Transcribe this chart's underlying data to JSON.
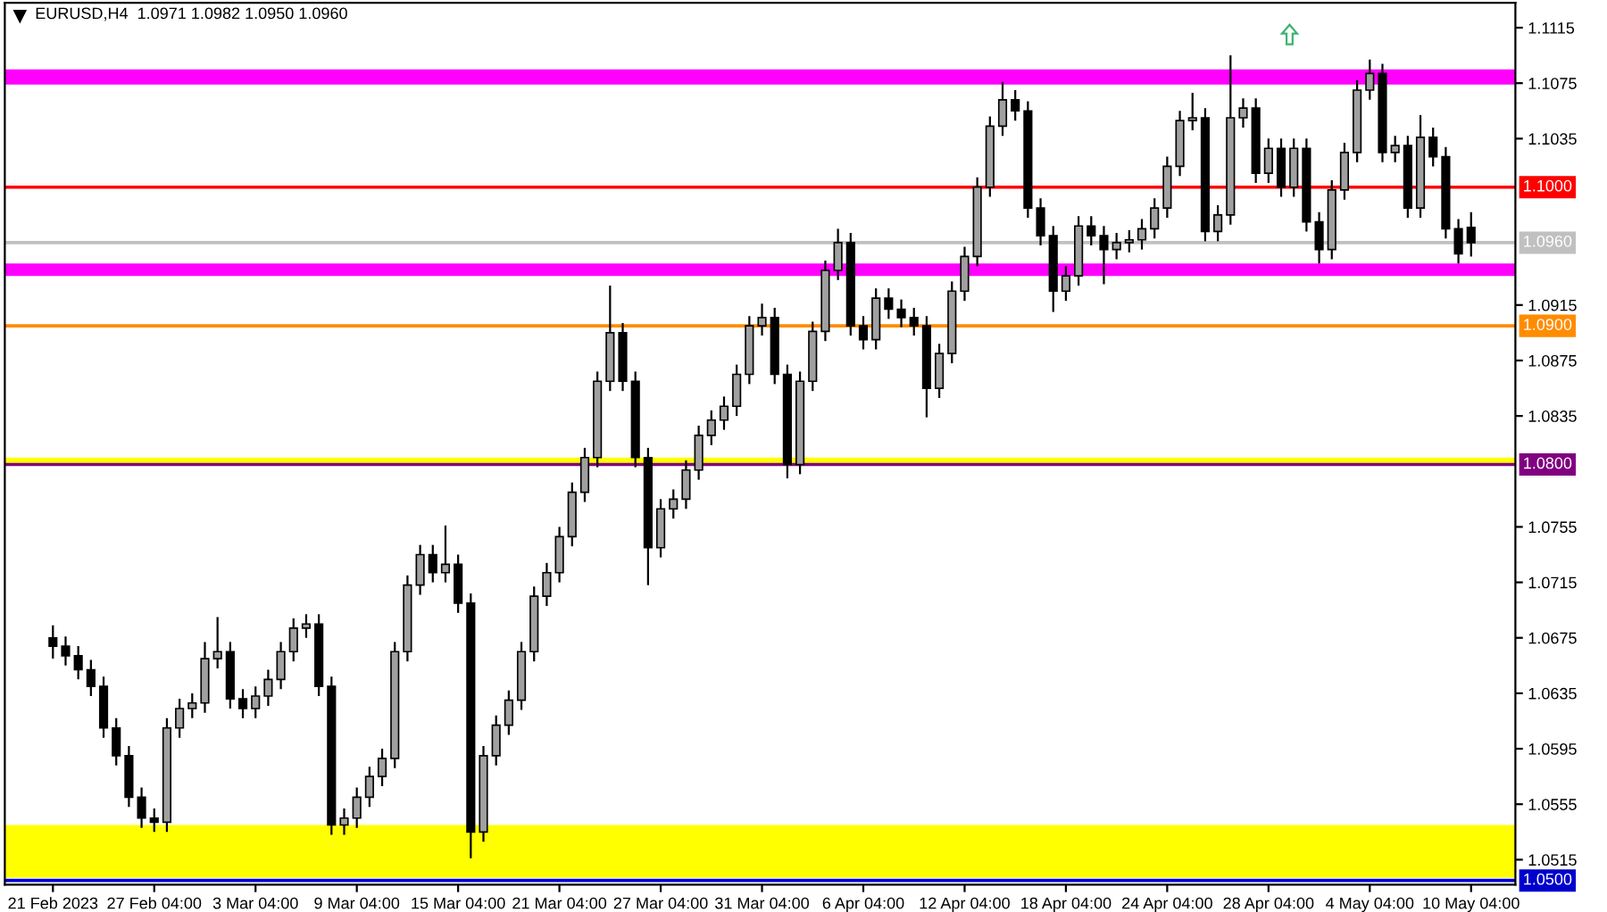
{
  "chart_data": {
    "type": "candlestick",
    "title": "EURUSD,H4  1.0971 1.0982 1.0950 1.0960",
    "categories": [
      "21 Feb 2023",
      null,
      null,
      null,
      null,
      null,
      null,
      null,
      "27 Feb 04:00",
      null,
      null,
      null,
      null,
      null,
      null,
      null,
      "3 Mar 04:00",
      null,
      null,
      null,
      null,
      null,
      null,
      null,
      "9 Mar 04:00",
      null,
      null,
      null,
      null,
      null,
      null,
      null,
      "15 Mar 04:00",
      null,
      null,
      null,
      null,
      null,
      null,
      null,
      "21 Mar 04:00",
      null,
      null,
      null,
      null,
      null,
      null,
      null,
      "27 Mar 04:00",
      null,
      null,
      null,
      null,
      null,
      null,
      null,
      "31 Mar 04:00",
      null,
      null,
      null,
      null,
      null,
      null,
      null,
      "6 Apr 04:00",
      null,
      null,
      null,
      null,
      null,
      null,
      null,
      "12 Apr 04:00",
      null,
      null,
      null,
      null,
      null,
      null,
      null,
      "18 Apr 04:00",
      null,
      null,
      null,
      null,
      null,
      null,
      null,
      "24 Apr 04:00",
      null,
      null,
      null,
      null,
      null,
      null,
      null,
      "28 Apr 04:00",
      null,
      null,
      null,
      null,
      null,
      null,
      null,
      "4 May 04:00",
      null,
      null,
      null,
      null,
      null,
      null,
      null,
      "10 May 04:00"
    ],
    "ohlc": [
      [
        1.0675,
        1.0684,
        1.066,
        1.0669
      ],
      [
        1.0669,
        1.0676,
        1.0655,
        1.0662
      ],
      [
        1.0662,
        1.0669,
        1.0645,
        1.0652
      ],
      [
        1.0652,
        1.0659,
        1.0633,
        1.064
      ],
      [
        1.064,
        1.0647,
        1.0603,
        1.061
      ],
      [
        1.061,
        1.0617,
        1.0583,
        1.059
      ],
      [
        1.059,
        1.0597,
        1.0553,
        1.056
      ],
      [
        1.056,
        1.0567,
        1.0538,
        1.0545
      ],
      [
        1.0545,
        1.0552,
        1.0535,
        1.0542
      ],
      [
        1.0542,
        1.0617,
        1.0535,
        1.061
      ],
      [
        1.061,
        1.0631,
        1.0603,
        1.0624
      ],
      [
        1.0624,
        1.0635,
        1.0617,
        1.0628
      ],
      [
        1.0628,
        1.0672,
        1.0621,
        1.066
      ],
      [
        1.066,
        1.069,
        1.0653,
        1.0665
      ],
      [
        1.0665,
        1.0672,
        1.0624,
        1.0631
      ],
      [
        1.0631,
        1.0638,
        1.0617,
        1.0624
      ],
      [
        1.0624,
        1.064,
        1.0617,
        1.0633
      ],
      [
        1.0633,
        1.0652,
        1.0626,
        1.0645
      ],
      [
        1.0645,
        1.0672,
        1.0638,
        1.0665
      ],
      [
        1.0665,
        1.0689,
        1.0658,
        1.0682
      ],
      [
        1.0682,
        1.0692,
        1.0675,
        1.0685
      ],
      [
        1.0685,
        1.0692,
        1.0633,
        1.064
      ],
      [
        1.064,
        1.0647,
        1.0533,
        1.054
      ],
      [
        1.054,
        1.0552,
        1.0533,
        1.0545
      ],
      [
        1.0545,
        1.0567,
        1.0538,
        1.056
      ],
      [
        1.056,
        1.0582,
        1.0553,
        1.0575
      ],
      [
        1.0575,
        1.0595,
        1.0568,
        1.0588
      ],
      [
        1.0588,
        1.0672,
        1.0581,
        1.0665
      ],
      [
        1.0665,
        1.072,
        1.0658,
        1.0713
      ],
      [
        1.0713,
        1.0742,
        1.0706,
        1.0735
      ],
      [
        1.0735,
        1.0742,
        1.0715,
        1.0722
      ],
      [
        1.0722,
        1.0756,
        1.0715,
        1.0728
      ],
      [
        1.0728,
        1.0735,
        1.0693,
        1.07
      ],
      [
        1.07,
        1.0707,
        1.0516,
        1.0535
      ],
      [
        1.0535,
        1.0597,
        1.0528,
        1.059
      ],
      [
        1.059,
        1.0619,
        1.0583,
        1.0612
      ],
      [
        1.0612,
        1.0637,
        1.0605,
        1.063
      ],
      [
        1.063,
        1.0672,
        1.0623,
        1.0665
      ],
      [
        1.0665,
        1.0712,
        1.0658,
        1.0705
      ],
      [
        1.0705,
        1.0729,
        1.0698,
        1.0722
      ],
      [
        1.0722,
        1.0755,
        1.0715,
        1.0748
      ],
      [
        1.0748,
        1.0787,
        1.0741,
        1.078
      ],
      [
        1.078,
        1.0812,
        1.0773,
        1.0805
      ],
      [
        1.0805,
        1.0867,
        1.0798,
        1.086
      ],
      [
        1.086,
        1.0929,
        1.0853,
        1.0895
      ],
      [
        1.0895,
        1.0902,
        1.0853,
        1.086
      ],
      [
        1.086,
        1.0867,
        1.0798,
        1.0805
      ],
      [
        1.0805,
        1.0812,
        1.0713,
        1.074
      ],
      [
        1.074,
        1.0775,
        1.0733,
        1.0768
      ],
      [
        1.0768,
        1.0782,
        1.0761,
        1.0775
      ],
      [
        1.0775,
        1.0803,
        1.0768,
        1.0796
      ],
      [
        1.0796,
        1.0828,
        1.0789,
        1.0821
      ],
      [
        1.0821,
        1.0839,
        1.0814,
        1.0832
      ],
      [
        1.0832,
        1.0849,
        1.0825,
        1.0842
      ],
      [
        1.0842,
        1.0872,
        1.0835,
        1.0865
      ],
      [
        1.0865,
        1.0907,
        1.0858,
        1.09
      ],
      [
        1.09,
        1.0916,
        1.0893,
        1.0906
      ],
      [
        1.0906,
        1.0913,
        1.0858,
        1.0865
      ],
      [
        1.0865,
        1.0872,
        1.079,
        1.08
      ],
      [
        1.08,
        1.0867,
        1.0793,
        1.086
      ],
      [
        1.086,
        1.0903,
        1.0853,
        1.0896
      ],
      [
        1.0896,
        1.0947,
        1.0889,
        1.094
      ],
      [
        1.094,
        1.097,
        1.0933,
        1.096
      ],
      [
        1.096,
        1.0967,
        1.0893,
        1.09
      ],
      [
        1.09,
        1.0907,
        1.0883,
        1.089
      ],
      [
        1.089,
        1.0927,
        1.0883,
        1.092
      ],
      [
        1.092,
        1.0927,
        1.0905,
        1.0912
      ],
      [
        1.0912,
        1.0919,
        1.0899,
        1.0906
      ],
      [
        1.0906,
        1.0913,
        1.0893,
        1.09
      ],
      [
        1.09,
        1.0907,
        1.0834,
        1.0855
      ],
      [
        1.0855,
        1.0887,
        1.0848,
        1.088
      ],
      [
        1.088,
        1.0932,
        1.0873,
        1.0925
      ],
      [
        1.0925,
        1.0957,
        1.0918,
        1.095
      ],
      [
        1.095,
        1.1007,
        1.0943,
        1.1
      ],
      [
        1.1,
        1.1051,
        1.0993,
        1.1044
      ],
      [
        1.1044,
        1.1076,
        1.1037,
        1.1063
      ],
      [
        1.1063,
        1.107,
        1.1048,
        1.1055
      ],
      [
        1.1055,
        1.1062,
        1.0978,
        1.0985
      ],
      [
        1.0985,
        1.0992,
        1.0958,
        1.0965
      ],
      [
        1.0965,
        1.0972,
        1.091,
        1.0925
      ],
      [
        1.0925,
        1.0943,
        1.0918,
        1.0936
      ],
      [
        1.0936,
        1.0979,
        1.0929,
        1.0972
      ],
      [
        1.0972,
        1.0979,
        1.0958,
        1.0965
      ],
      [
        1.0965,
        1.0972,
        1.093,
        1.0955
      ],
      [
        1.0955,
        1.0967,
        1.0948,
        1.096
      ],
      [
        1.096,
        1.0969,
        1.0953,
        1.0962
      ],
      [
        1.0962,
        1.0977,
        1.0955,
        1.097
      ],
      [
        1.097,
        1.0992,
        1.0963,
        1.0985
      ],
      [
        1.0985,
        1.1022,
        1.0978,
        1.1015
      ],
      [
        1.1015,
        1.1055,
        1.1008,
        1.1048
      ],
      [
        1.1048,
        1.1068,
        1.1041,
        1.105
      ],
      [
        1.105,
        1.1057,
        1.0961,
        1.0968
      ],
      [
        1.0968,
        1.0987,
        1.0961,
        1.098
      ],
      [
        1.098,
        1.1095,
        1.0973,
        1.105
      ],
      [
        1.105,
        1.1064,
        1.1043,
        1.1057
      ],
      [
        1.1057,
        1.1064,
        1.1003,
        1.101
      ],
      [
        1.101,
        1.1035,
        1.1003,
        1.1028
      ],
      [
        1.1028,
        1.1035,
        1.0993,
        1.1
      ],
      [
        1.1,
        1.1035,
        1.0993,
        1.1028
      ],
      [
        1.1028,
        1.1035,
        1.0968,
        1.0975
      ],
      [
        1.0975,
        1.0982,
        1.0945,
        1.0955
      ],
      [
        1.0955,
        1.1005,
        1.0948,
        1.0998
      ],
      [
        1.0998,
        1.1032,
        1.0991,
        1.1025
      ],
      [
        1.1025,
        1.1077,
        1.1018,
        1.107
      ],
      [
        1.107,
        1.1092,
        1.1063,
        1.1082
      ],
      [
        1.1082,
        1.1089,
        1.1018,
        1.1025
      ],
      [
        1.1025,
        1.1037,
        1.1018,
        1.103
      ],
      [
        1.103,
        1.1037,
        1.0978,
        1.0985
      ],
      [
        1.0985,
        1.1052,
        1.0978,
        1.1036
      ],
      [
        1.1036,
        1.1043,
        1.1015,
        1.1022
      ],
      [
        1.1022,
        1.1029,
        1.0963,
        1.097
      ],
      [
        1.097,
        1.0977,
        1.0945,
        1.0952
      ],
      [
        1.0971,
        1.0982,
        1.095,
        1.096
      ]
    ],
    "ylim": [
      1.0497,
      1.1133
    ],
    "yticks": [
      1.1115,
      1.1075,
      1.1035,
      1.0915,
      1.0875,
      1.0835,
      1.0755,
      1.0715,
      1.0675,
      1.0635,
      1.0595,
      1.0555,
      1.0515
    ],
    "ref_lines": [
      {
        "axis": "y",
        "value": 1.1,
        "label": "1.1000",
        "color": "#ff0000"
      },
      {
        "axis": "y",
        "value": 1.096,
        "label": "1.0960",
        "color": "#c0c0c0"
      },
      {
        "axis": "y",
        "value": 1.09,
        "label": "1.0900",
        "color": "#ff8c00"
      },
      {
        "axis": "y",
        "value": 1.08,
        "label": "1.0800",
        "color": "#800080"
      },
      {
        "axis": "y",
        "value": 1.05,
        "label": "1.0500",
        "color": "#0000cd"
      }
    ],
    "bands": [
      {
        "axis": "y",
        "from": 1.1074,
        "to": 1.1085,
        "color": "#ff00ff"
      },
      {
        "axis": "y",
        "from": 1.0936,
        "to": 1.0945,
        "color": "#ff00ff"
      },
      {
        "axis": "y",
        "from": 1.08,
        "to": 1.0805,
        "color": "#ffff00"
      },
      {
        "axis": "y",
        "from": 1.0502,
        "to": 1.054,
        "color": "#ffff00"
      }
    ],
    "grid": false
  }
}
